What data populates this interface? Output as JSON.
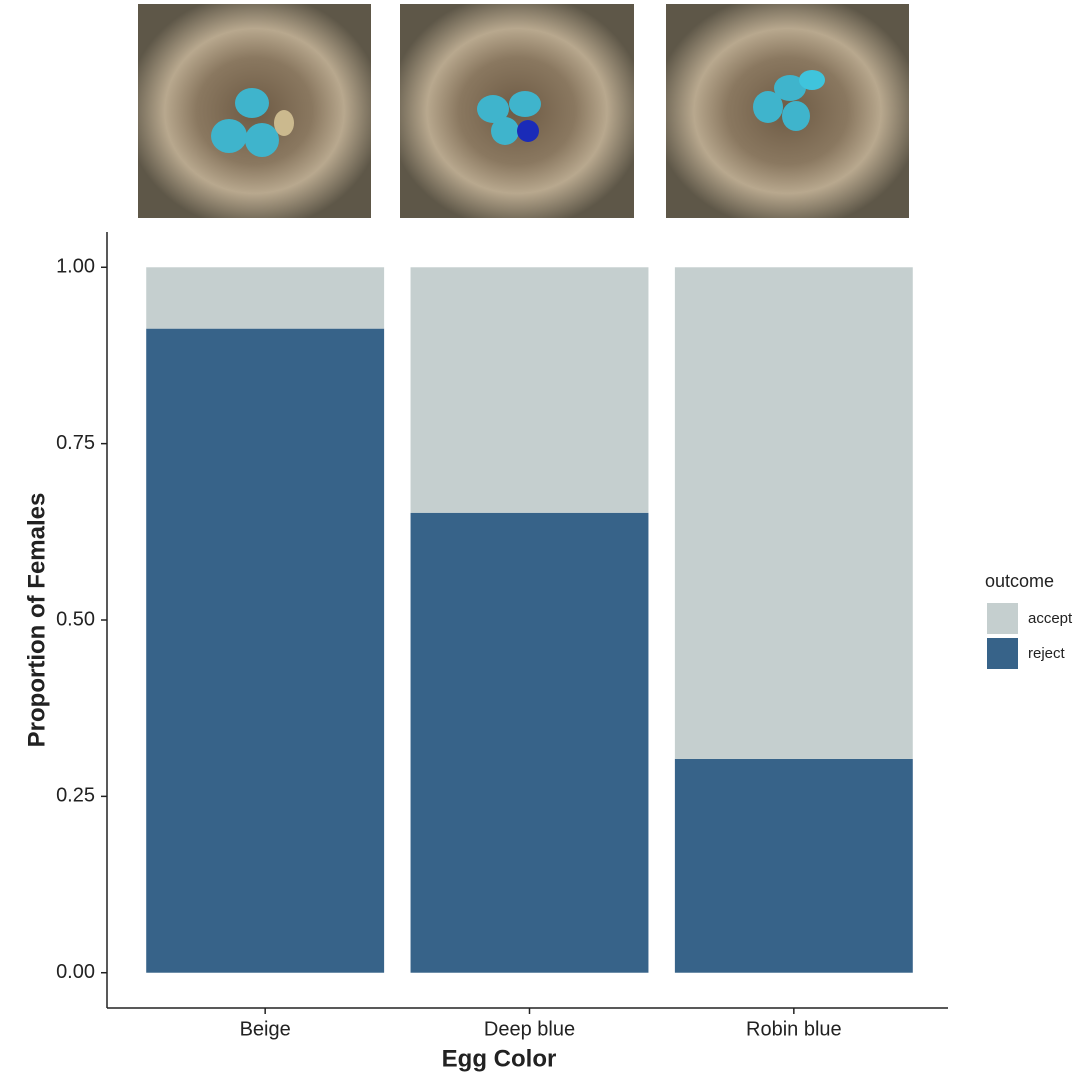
{
  "chart_data": {
    "type": "stacked-bar",
    "x_label": "Egg Color",
    "y_label": "Proportion of Females",
    "categories": [
      "Beige",
      "Deep blue",
      "Robin blue"
    ],
    "series": [
      {
        "name": "reject",
        "color": "#376389",
        "values": [
          0.913,
          0.652,
          0.303
        ]
      },
      {
        "name": "accept",
        "color": "#c5cfcf",
        "values": [
          0.087,
          0.348,
          0.697
        ]
      }
    ],
    "ylim": [
      -0.05,
      1.05
    ],
    "yticks": [
      {
        "value": 0,
        "label": "0.00"
      },
      {
        "value": 0.25,
        "label": "0.25"
      },
      {
        "value": 0.5,
        "label": "0.50"
      },
      {
        "value": 0.75,
        "label": "0.75"
      },
      {
        "value": 1,
        "label": "1.00"
      }
    ],
    "legend_title": "outcome",
    "legend": "right",
    "grid": false
  }
}
